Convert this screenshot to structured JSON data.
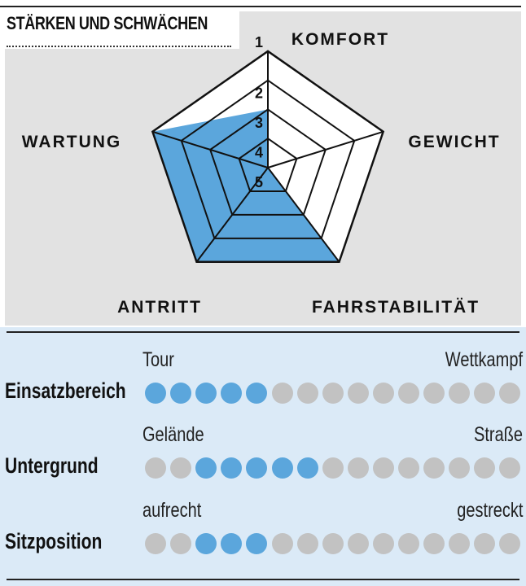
{
  "title": "STÄRKEN UND SCHWÄCHEN",
  "chart_data": [
    {
      "type": "radar",
      "axes": [
        "KOMFORT",
        "GEWICHT",
        "FAHRSTABILITÄT",
        "ANTRITT",
        "WARTUNG"
      ],
      "values": [
        3,
        5,
        1,
        1,
        1
      ],
      "scale_ticks": [
        "1",
        "2",
        "3",
        "4",
        "5"
      ],
      "scale_note_best_outer": true,
      "range": [
        1,
        5
      ],
      "fill_color": "#5ba6dc"
    },
    {
      "type": "dot-scale",
      "dot_count": 15,
      "filled_color": "#5ba6dc",
      "empty_color": "#c2c2c2",
      "rows": [
        {
          "label": "Einsatzbereich",
          "left": "Tour",
          "right": "Wettkampf",
          "filled_from": 1,
          "filled_to": 5
        },
        {
          "label": "Untergrund",
          "left": "Gelände",
          "right": "Straße",
          "filled_from": 3,
          "filled_to": 7
        },
        {
          "label": "Sitzposition",
          "left": "aufrecht",
          "right": "gestreckt",
          "filled_from": 3,
          "filled_to": 5
        }
      ]
    }
  ]
}
